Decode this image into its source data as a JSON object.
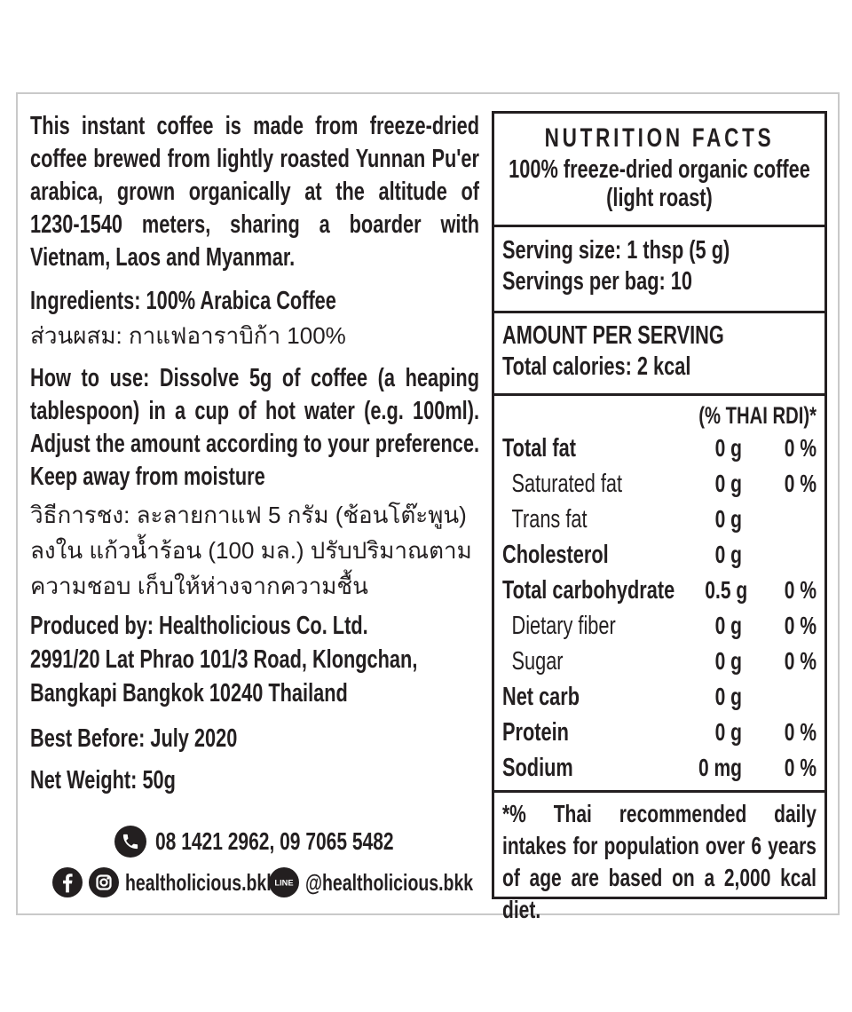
{
  "colors": {
    "text": "#231f20",
    "panel_border": "#231f20",
    "frame_border": "#c9c9c9",
    "background": "#ffffff",
    "icon_fill": "#231f20"
  },
  "left": {
    "description": "This instant coffee is made from freeze-dried coffee brewed from lightly roasted Yunnan Pu'er arabica, grown organically at the altitude of 1230-1540 meters, sharing a boarder with Vietnam, Laos and Myanmar.",
    "ingredients": "Ingredients: 100% Arabica Coffee",
    "ingredients_thai": "ส่วนผสม: กาแฟอาราบิก้า 100%",
    "how_to_use": "How to use: Dissolve 5g of coffee (a heaping tablespoon) in a cup of hot water (e.g. 100ml). Adjust the amount according to your preference.  Keep away from moisture",
    "instructions_thai": "วิธีการชง: ละลายกาแฟ 5 กรัม (ช้อนโต๊ะพูน) ลงใน แก้วน้ำร้อน (100 มล.) ปรับปริมาณตามความชอบ เก็บให้ห่างจากความชื้น",
    "producer_lines": [
      "Produced by: Healtholicious Co. Ltd.",
      "2991/20 Lat Phrao 101/3 Road, Klongchan,",
      "Bangkapi Bangkok 10240 Thailand"
    ],
    "best_before": "Best Before: July 2020",
    "net_weight": "Net Weight: 50g"
  },
  "contact": {
    "phone": {
      "icon": "phone-icon",
      "numbers": "08 1421 2962, 09 7065 5482"
    },
    "social": {
      "facebook_icon": "facebook-icon",
      "instagram_icon": "instagram-icon",
      "handle": "healtholicious.bkk",
      "line_icon": "line-icon",
      "line_badge_text": "LINE",
      "line_handle": "@healtholicious.bkk"
    }
  },
  "nutrition": {
    "title": "NUTRITION FACTS",
    "subtitle": "100% freeze-dried organic coffee (light roast)",
    "serving_size": "Serving size: 1 thsp (5 g)",
    "servings_per_bag": "Servings per bag: 10",
    "amount_per_serving": "AMOUNT PER SERVING",
    "total_calories": "Total calories: 2 kcal",
    "rdi_header": "(% THAI RDI)*",
    "rows": [
      {
        "label": "Total fat",
        "amount": "0 g",
        "rdi": "0 %",
        "style": "bold"
      },
      {
        "label": "Saturated fat",
        "amount": "0 g",
        "rdi": "0 %",
        "style": "sub"
      },
      {
        "label": "Trans fat",
        "amount": "0 g",
        "rdi": "",
        "style": "sub"
      },
      {
        "label": "Cholesterol",
        "amount": "0 g",
        "rdi": "",
        "style": "bold"
      },
      {
        "label": "Total carbohydrate",
        "amount": "0.5 g",
        "rdi": "0 %",
        "style": "bold"
      },
      {
        "label": "Dietary fiber",
        "amount": "0 g",
        "rdi": "0 %",
        "style": "sub"
      },
      {
        "label": "Sugar",
        "amount": "0 g",
        "rdi": "0 %",
        "style": "sub"
      },
      {
        "label": "Net carb",
        "amount": "0 g",
        "rdi": "",
        "style": "bold"
      },
      {
        "label": "Protein",
        "amount": "0 g",
        "rdi": "0 %",
        "style": "bold"
      },
      {
        "label": "Sodium",
        "amount": "0 mg",
        "rdi": "0 %",
        "style": "bold"
      }
    ],
    "footnote": "*% Thai recommended daily intakes for population over 6 years of age are based on a 2,000 kcal diet."
  }
}
